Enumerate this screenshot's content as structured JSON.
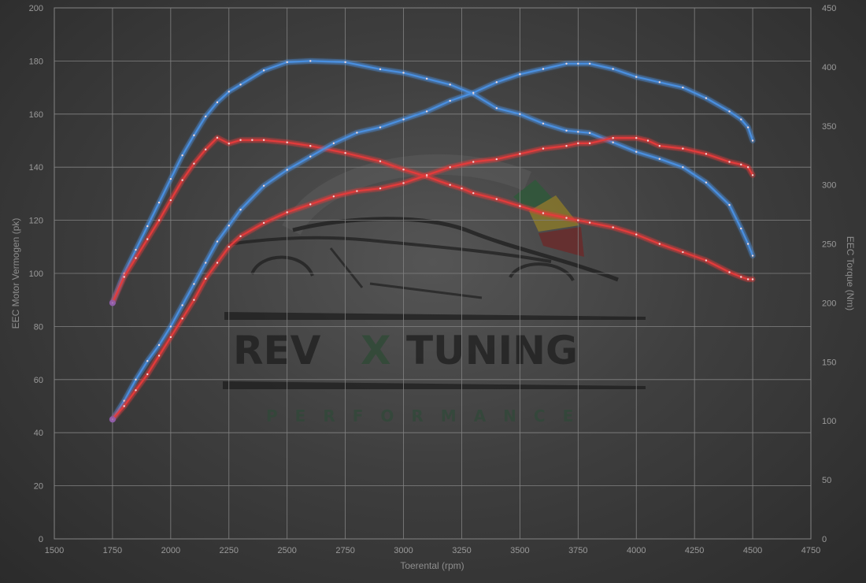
{
  "chart_data": {
    "type": "line",
    "title": "",
    "xlabel": "Toerental (rpm)",
    "ylabel_left": "EEC Motor Vermogen (pk)",
    "ylabel_right": "EEC Torque (Nm)",
    "xlim": [
      1500,
      4750
    ],
    "ylim_left": [
      0,
      200
    ],
    "ylim_right": [
      0,
      450
    ],
    "x_ticks": [
      "1500",
      "1750",
      "2000",
      "2250",
      "2500",
      "2750",
      "3000",
      "3250",
      "3500",
      "3750",
      "4000",
      "4250",
      "4500",
      "4750"
    ],
    "y_left_ticks": [
      "0",
      "20",
      "40",
      "60",
      "80",
      "100",
      "120",
      "140",
      "160",
      "180",
      "200"
    ],
    "y_right_ticks": [
      "0",
      "50",
      "100",
      "150",
      "200",
      "250",
      "300",
      "350",
      "400",
      "450"
    ],
    "grid": true,
    "series": [
      {
        "axis": "right",
        "color": "#4a8fe0",
        "x": [
          1750,
          1800,
          1850,
          1900,
          1950,
          2000,
          2050,
          2100,
          2150,
          2200,
          2250,
          2300,
          2400,
          2500,
          2600,
          2750,
          2900,
          3000,
          3100,
          3200,
          3300,
          3400,
          3500,
          3600,
          3700,
          3750,
          3800,
          3900,
          4000,
          4100,
          4200,
          4300,
          4400,
          4450,
          4480,
          4500
        ],
        "y": [
          200,
          225,
          245,
          265,
          285,
          305,
          325,
          342,
          358,
          370,
          379,
          385,
          397,
          404,
          405,
          404,
          398,
          395,
          390,
          385,
          377,
          365,
          360,
          352,
          346,
          345,
          344,
          336,
          328,
          322,
          315,
          302,
          283,
          263,
          250,
          240
        ]
      },
      {
        "axis": "right",
        "color": "#e33a3a",
        "x": [
          1750,
          1800,
          1850,
          1900,
          1950,
          2000,
          2050,
          2100,
          2150,
          2200,
          2250,
          2300,
          2350,
          2400,
          2500,
          2600,
          2750,
          2900,
          3000,
          3100,
          3200,
          3250,
          3300,
          3400,
          3500,
          3600,
          3700,
          3750,
          3800,
          3900,
          4000,
          4100,
          4200,
          4300,
          4400,
          4450,
          4480,
          4500
        ],
        "y": [
          200,
          222,
          238,
          254,
          270,
          287,
          304,
          318,
          330,
          340,
          335,
          338,
          338,
          338,
          336,
          333,
          327,
          320,
          313,
          307,
          300,
          297,
          293,
          288,
          282,
          276,
          272,
          270,
          268,
          264,
          258,
          250,
          243,
          236,
          226,
          222,
          220,
          220
        ]
      },
      {
        "axis": "left",
        "color": "#4a8fe0",
        "x": [
          1750,
          1800,
          1850,
          1900,
          1950,
          2000,
          2050,
          2100,
          2150,
          2200,
          2250,
          2300,
          2400,
          2500,
          2600,
          2700,
          2800,
          2900,
          3000,
          3100,
          3200,
          3300,
          3400,
          3500,
          3600,
          3700,
          3750,
          3800,
          3900,
          4000,
          4100,
          4200,
          4300,
          4400,
          4450,
          4480,
          4500
        ],
        "y": [
          45,
          52,
          60,
          67,
          73,
          80,
          88,
          96,
          104,
          112,
          118,
          124,
          133,
          139,
          144,
          149,
          153,
          155,
          158,
          161,
          165,
          168,
          172,
          175,
          177,
          179,
          179,
          179,
          177,
          174,
          172,
          170,
          166,
          161,
          158,
          155,
          150
        ]
      },
      {
        "axis": "left",
        "color": "#e33a3a",
        "x": [
          1750,
          1800,
          1850,
          1900,
          1950,
          2000,
          2050,
          2100,
          2150,
          2200,
          2250,
          2300,
          2400,
          2500,
          2600,
          2700,
          2800,
          2900,
          3000,
          3100,
          3200,
          3300,
          3400,
          3500,
          3600,
          3700,
          3750,
          3800,
          3900,
          4000,
          4050,
          4100,
          4200,
          4300,
          4400,
          4450,
          4480,
          4500
        ],
        "y": [
          45,
          50,
          56,
          62,
          69,
          76,
          83,
          90,
          98,
          104,
          110,
          114,
          119,
          123,
          126,
          129,
          131,
          132,
          134,
          137,
          140,
          142,
          143,
          145,
          147,
          148,
          149,
          149,
          151,
          151,
          150,
          148,
          147,
          145,
          142,
          141,
          140,
          137
        ]
      }
    ]
  },
  "watermark": {
    "brand_left": "REV",
    "brand_mid": "X",
    "brand_right": "TUNING",
    "tagline": "PERFORMANCE"
  }
}
